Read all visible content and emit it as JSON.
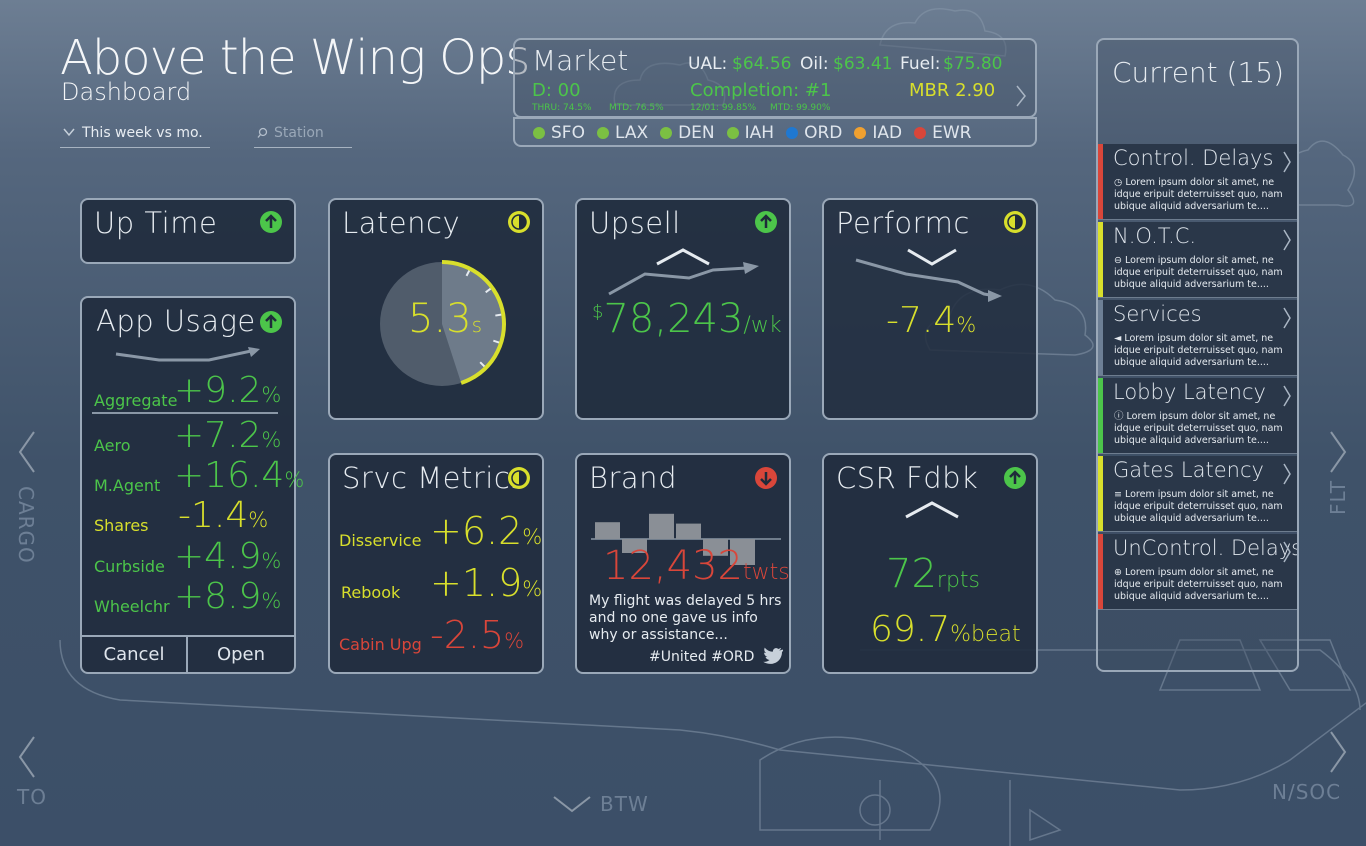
{
  "header": {
    "title": "Above the Wing Ops",
    "subtitle": "Dashboard",
    "period_select": "This week vs mo.",
    "station_placeholder": "Station"
  },
  "market": {
    "title": "Market",
    "ual_label": "UAL:",
    "ual_value": "$64.56",
    "oil_label": "Oil:",
    "oil_value": "$63.41",
    "fuel_label": "Fuel:",
    "fuel_value": "$75.80",
    "d_label": "D: 00",
    "completion": "Completion: #1",
    "mbr": "MBR 2.90",
    "thru": "THRU: 74.5%",
    "mtd1": "MTD: 76.5%",
    "date_stat": "12/01: 99.85%",
    "mtd2": "MTD: 99.90%",
    "stations": [
      {
        "code": "SFO",
        "color": "#7bc043"
      },
      {
        "code": "LAX",
        "color": "#7bc043"
      },
      {
        "code": "DEN",
        "color": "#7bc043"
      },
      {
        "code": "IAH",
        "color": "#7bc043"
      },
      {
        "code": "ORD",
        "color": "#1f78d1"
      },
      {
        "code": "IAD",
        "color": "#f0a030"
      },
      {
        "code": "EWR",
        "color": "#d9463a"
      }
    ]
  },
  "uptime": {
    "title": "Up Time",
    "icon": "arrow-up-circle-icon"
  },
  "app_usage": {
    "title": "App Usage",
    "aggregate_label": "Aggregate",
    "aggregate_value": "+9.2",
    "aggregate_unit": "%",
    "rows": [
      {
        "label": "Aero",
        "value": "+7.2",
        "unit": "%",
        "status": "green"
      },
      {
        "label": "M.Agent",
        "value": "+16.4",
        "unit": "%",
        "status": "green"
      },
      {
        "label": "Shares",
        "value": "-1.4",
        "unit": "%",
        "status": "yellow"
      },
      {
        "label": "Curbside",
        "value": "+4.9",
        "unit": "%",
        "status": "green"
      },
      {
        "label": "Wheelchr",
        "value": "+8.9",
        "unit": "%",
        "status": "green"
      }
    ],
    "cancel_label": "Cancel",
    "open_label": "Open"
  },
  "latency": {
    "title": "Latency",
    "value": "5.3",
    "unit": "s",
    "gauge_fraction": 0.45
  },
  "upsell": {
    "title": "Upsell",
    "currency": "$",
    "value": "78,243",
    "unit": "/wk"
  },
  "performc": {
    "title": "Performc",
    "value": "-7.4",
    "unit": "%"
  },
  "srvc_metrics": {
    "title": "Srvc Metrics",
    "rows": [
      {
        "label": "Disservice",
        "value": "+6.2",
        "unit": "%",
        "status": "yellow"
      },
      {
        "label": "Rebook",
        "value": "+1.9",
        "unit": "%",
        "status": "yellow"
      },
      {
        "label": "Cabin Upg",
        "value": "-2.5",
        "unit": "%",
        "status": "red"
      }
    ]
  },
  "brand": {
    "title": "Brand",
    "value": "12,432",
    "unit": "twts",
    "tweet": "My flight was delayed 5 hrs and no one gave us info why or assistance...",
    "hashtags": "#United #ORD",
    "bars": [
      0.6,
      -0.5,
      0.9,
      0.55,
      -0.6,
      -1.0
    ]
  },
  "csr": {
    "title": "CSR Fdbk",
    "rpts_value": "72",
    "rpts_unit": "rpts",
    "beat_value": "69.7",
    "beat_unit": "%beat"
  },
  "current": {
    "title": "Current (15)",
    "alerts": [
      {
        "title": "Control. Delays",
        "color": "#d9463a",
        "body": "Lorem ipsum dolor sit amet, ne idque eripuit deterruisset quo, nam ubique aliquid adversarium te....",
        "icon": "clock-icon"
      },
      {
        "title": "N.O.T.C.",
        "color": "#d8df2c",
        "body": "Lorem ipsum dolor sit amet, ne idque eripuit deterruisset quo, nam ubique aliquid adversarium te....",
        "icon": "minus-circle-icon"
      },
      {
        "title": "Services",
        "color": "#6d7f95",
        "body": "Lorem ipsum dolor sit amet, ne idque eripuit deterruisset quo, nam ubique aliquid adversarium te....",
        "icon": "megaphone-icon"
      },
      {
        "title": "Lobby Latency",
        "color": "#4cc54a",
        "body": "Lorem ipsum dolor sit amet, ne idque eripuit deterruisset quo, nam ubique aliquid adversarium te....",
        "icon": "info-icon"
      },
      {
        "title": "Gates Latency",
        "color": "#d8df2c",
        "body": "Lorem ipsum dolor sit amet, ne idque eripuit deterruisset quo, nam ubique aliquid adversarium te....",
        "icon": "rss-icon"
      },
      {
        "title": "UnControl. Delays",
        "color": "#d9463a",
        "body": "Lorem ipsum dolor sit amet, ne idque eripuit deterruisset quo, nam ubique aliquid adversarium te....",
        "icon": "globe-icon"
      }
    ]
  },
  "nav": {
    "cargo": "CARGO",
    "flt": "FLT",
    "to": "TO",
    "nsoc": "N/SOC",
    "btw": "BTW"
  }
}
